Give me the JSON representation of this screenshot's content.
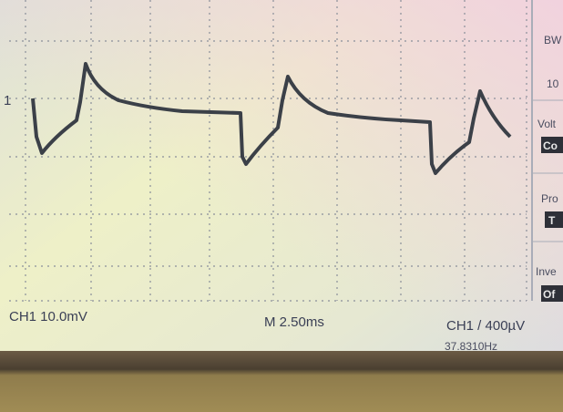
{
  "screen": {
    "channel_marker": "1",
    "status": {
      "ch1_scale": "CH1 10.0mV",
      "timebase": "M 2.50ms",
      "trigger": "CH1 / 400µV",
      "frequency": "37.8310Hz"
    }
  },
  "menu": [
    {
      "label": "BW",
      "value": "10"
    },
    {
      "label": "Volt",
      "value": "Co"
    },
    {
      "label": "Pro",
      "value": "T"
    },
    {
      "label": "Inve",
      "value": "Of"
    }
  ]
}
